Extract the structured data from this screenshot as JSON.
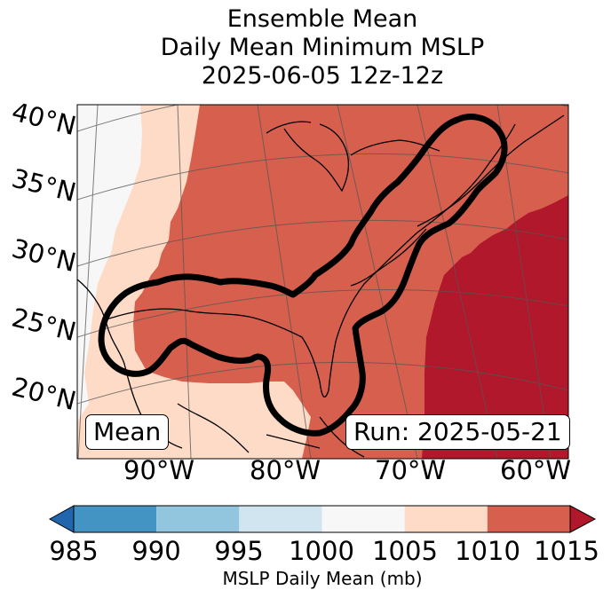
{
  "title": {
    "line1": "Ensemble Mean",
    "line2": "Daily Mean Minimum MSLP",
    "line3": "2025-06-05 12z-12z"
  },
  "map": {
    "latitude_labels": [
      "40°N",
      "35°N",
      "30°N",
      "25°N",
      "20°N"
    ],
    "longitude_labels": [
      "90°W",
      "80°W",
      "70°W",
      "60°W"
    ],
    "left_annotation": "Mean",
    "right_annotation": "Run: 2025-05-21",
    "colors": {
      "lt1000": "#f7f7f7",
      "c1005": "#fddbc7",
      "c1010": "#d6604d",
      "c1015": "#b2182b"
    },
    "contour_color": "#000000"
  },
  "colorbar": {
    "ticks": [
      "985",
      "990",
      "995",
      "1000",
      "1005",
      "1010",
      "1015"
    ],
    "label": "MSLP Daily Mean (mb)",
    "segments": [
      {
        "from": 985,
        "to": 990,
        "color": "#4393c3"
      },
      {
        "from": 990,
        "to": 995,
        "color": "#92c5de"
      },
      {
        "from": 995,
        "to": 1000,
        "color": "#d1e5f0"
      },
      {
        "from": 1000,
        "to": 1005,
        "color": "#f7f7f7"
      },
      {
        "from": 1005,
        "to": 1010,
        "color": "#fddbc7"
      },
      {
        "from": 1010,
        "to": 1015,
        "color": "#d6604d"
      }
    ],
    "extend_low_color": "#2166ac",
    "extend_high_color": "#b2182b"
  }
}
